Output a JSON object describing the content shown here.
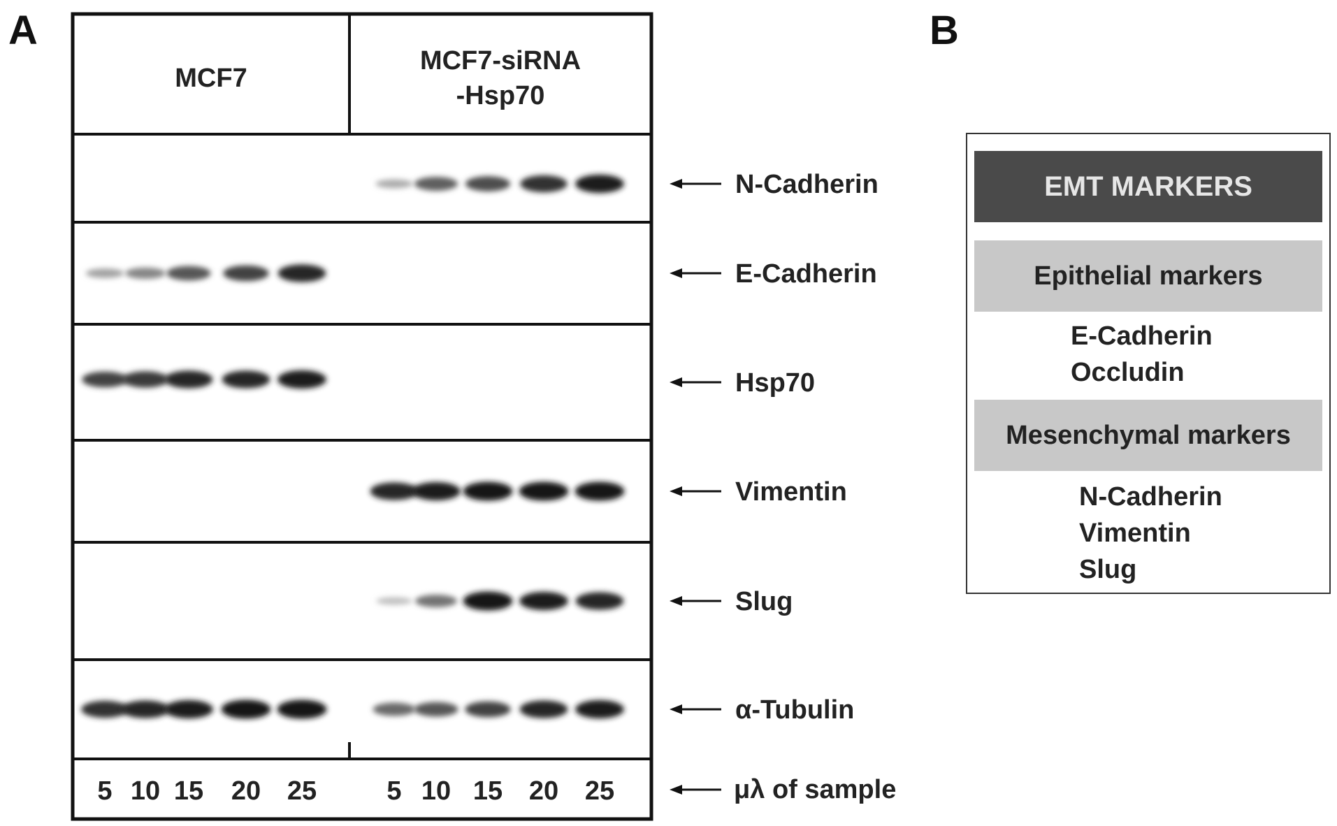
{
  "panels": {
    "a": "A",
    "b": "B"
  },
  "groups": [
    {
      "label_lines": [
        "MCF7"
      ]
    },
    {
      "label_lines": [
        "MCF7-siRNA",
        "-Hsp70"
      ]
    }
  ],
  "lanes": [
    "5",
    "10",
    "15",
    "20",
    "25"
  ],
  "lanes_label": "μλ of sample",
  "blots": [
    {
      "label": "N-Cadherin",
      "intensity": [
        [
          0,
          0,
          0,
          0,
          0
        ],
        [
          0.15,
          0.55,
          0.65,
          0.8,
          0.9
        ]
      ]
    },
    {
      "label": "E-Cadherin",
      "intensity": [
        [
          0.2,
          0.35,
          0.6,
          0.7,
          0.85
        ],
        [
          0,
          0,
          0,
          0,
          0
        ]
      ]
    },
    {
      "label": "Hsp70",
      "intensity": [
        [
          0.7,
          0.75,
          0.85,
          0.85,
          0.9
        ],
        [
          0,
          0,
          0,
          0,
          0
        ]
      ]
    },
    {
      "label": "Vimentin",
      "intensity": [
        [
          0,
          0,
          0,
          0,
          0
        ],
        [
          0.85,
          0.9,
          0.95,
          0.95,
          0.95
        ]
      ]
    },
    {
      "label": "Slug",
      "intensity": [
        [
          0,
          0,
          0,
          0,
          0
        ],
        [
          0.05,
          0.45,
          0.95,
          0.9,
          0.85
        ]
      ]
    },
    {
      "label": "α-Tubulin",
      "intensity": [
        [
          0.8,
          0.85,
          0.9,
          0.95,
          0.95
        ],
        [
          0.5,
          0.6,
          0.7,
          0.85,
          0.9
        ]
      ]
    }
  ],
  "emt": {
    "title": "EMT MARKERS",
    "epithelial": {
      "title": "Epithelial markers",
      "items": [
        "E-Cadherin",
        "Occludin"
      ]
    },
    "mesenchymal": {
      "title": "Mesenchymal markers",
      "items": [
        "N-Cadherin",
        "Vimentin",
        "Slug"
      ]
    }
  }
}
